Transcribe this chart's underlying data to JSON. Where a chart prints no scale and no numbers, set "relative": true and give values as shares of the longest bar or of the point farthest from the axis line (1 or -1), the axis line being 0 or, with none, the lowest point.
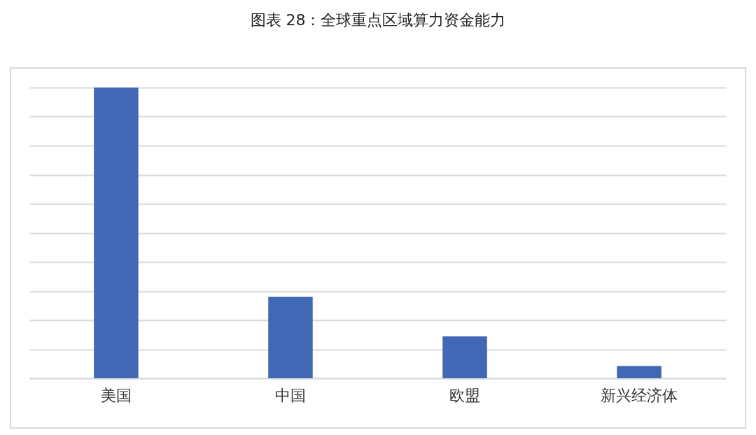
{
  "chart_data": {
    "type": "bar",
    "title": "图表 28：全球重点区域算力资金能力",
    "categories": [
      "美国",
      "中国",
      "欧盟",
      "新兴经济体"
    ],
    "values": [
      1,
      0.28,
      0.144,
      0.042
    ],
    "color": "#4068b5",
    "relative": true,
    "grid": true
  }
}
